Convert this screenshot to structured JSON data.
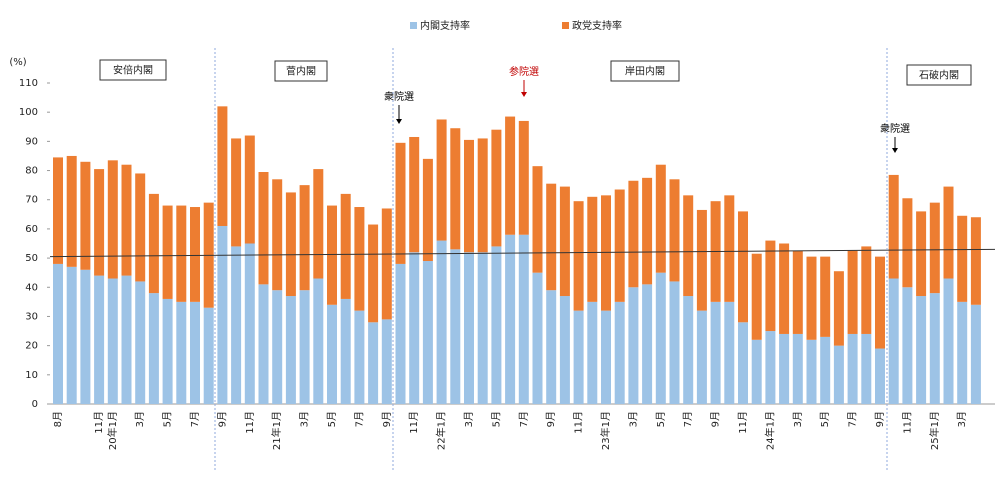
{
  "chart_data": {
    "type": "stacked_bar",
    "y_label": "(%)",
    "ylim": [
      0,
      110
    ],
    "yticks": [
      0,
      10,
      20,
      30,
      40,
      50,
      60,
      70,
      80,
      90,
      100,
      110
    ],
    "legend": "top",
    "categories": [
      "8月",
      null,
      null,
      "11月",
      "20年1月",
      null,
      "3月",
      null,
      "5月",
      null,
      "7月",
      null,
      "9月",
      null,
      "11月",
      null,
      "21年1月",
      null,
      "3月",
      null,
      "5月",
      null,
      "7月",
      null,
      "9月",
      null,
      "11月",
      null,
      "22年1月",
      null,
      "3月",
      null,
      "5月",
      null,
      "7月",
      null,
      "9月",
      null,
      "11月",
      null,
      "23年1月",
      null,
      "3月",
      null,
      "5月",
      null,
      "7月",
      null,
      "9月",
      null,
      "11月",
      null,
      "24年1月",
      null,
      "3月",
      null,
      "5月",
      null,
      "7月",
      null,
      "9月",
      null,
      "11月",
      null,
      "25年1月",
      null,
      "3月",
      null
    ],
    "series": [
      {
        "name": "内閣支持率",
        "color": "#9dc3e6",
        "values": [
          48,
          47,
          46,
          44,
          43,
          44,
          42,
          38,
          36,
          35,
          35,
          33,
          61,
          54,
          55,
          41,
          39,
          37,
          39,
          43,
          34,
          36,
          32,
          28,
          29,
          48,
          52,
          49,
          56,
          53,
          52,
          52,
          54,
          58,
          58,
          45,
          39,
          37,
          32,
          35,
          32,
          35,
          40,
          41,
          45,
          42,
          37,
          32,
          35,
          35,
          28,
          22,
          25,
          24,
          24,
          22,
          23,
          20,
          24,
          24,
          19,
          43,
          40,
          37,
          38,
          43,
          35,
          34
        ]
      },
      {
        "name": "政党支持率",
        "color": "#ed7d31",
        "values": [
          36.5,
          38,
          37,
          36.5,
          40.5,
          38,
          37,
          34,
          32,
          33,
          32.5,
          36,
          41,
          37,
          37,
          38.5,
          38,
          35.5,
          36,
          37.5,
          34,
          36,
          35.5,
          33.5,
          38,
          41.5,
          39.5,
          35,
          41.5,
          41.5,
          38.5,
          39,
          40,
          40.5,
          39,
          36.5,
          36.5,
          37.5,
          37.5,
          36,
          39.5,
          38.5,
          36.5,
          36.5,
          37,
          35,
          34.5,
          34.5,
          34.5,
          36.5,
          38,
          29.5,
          31,
          31,
          28.5,
          28.5,
          27.5,
          25.5,
          28.5,
          30,
          31.5,
          35.5,
          30.5,
          29,
          31,
          31.5,
          29.5,
          30
        ]
      }
    ],
    "trend_line": {
      "color": "#333333",
      "values": [
        50.5,
        53
      ]
    },
    "cabinets": [
      "安倍内閣",
      "菅内閣",
      "岸田内閣",
      "石破内閣"
    ],
    "annotations": [
      {
        "text": "衆院選",
        "color": "#000000"
      },
      {
        "text": "参院選",
        "color": "#c00000"
      },
      {
        "text": "衆院選",
        "color": "#000000"
      }
    ]
  }
}
